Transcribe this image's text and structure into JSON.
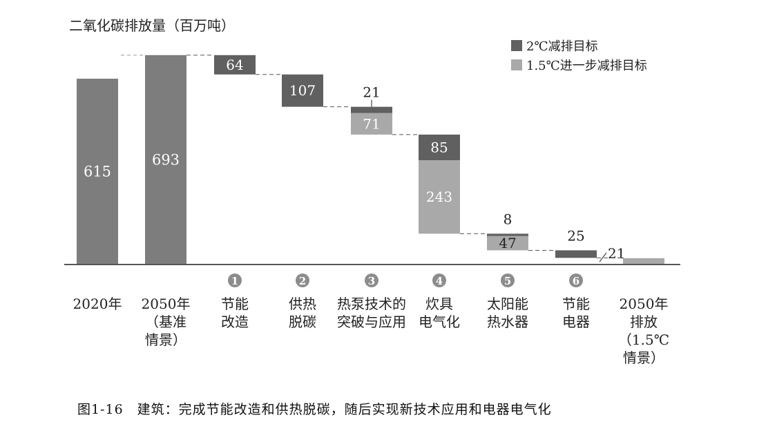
{
  "caption": "图1-16　建筑：完成节能改造和供热脱碳，随后实现新技术应用和电器电气化",
  "colors": {
    "base": "#7d7d7d",
    "dark": "#606060",
    "light": "#a9a9a9",
    "axis": "#555555",
    "text_on_bar": "#ffffff"
  },
  "chart_data": {
    "type": "bar",
    "subtype": "waterfall",
    "title": "二氧化碳排放量（百万吨）",
    "units": "百万吨",
    "legend_position": "top-right",
    "series": [
      {
        "name": "2℃减排目标",
        "color": "#606060"
      },
      {
        "name": "1.5℃进一步减排目标",
        "color": "#a9a9a9"
      }
    ],
    "categories": [
      {
        "label_lines": [
          "2020年"
        ]
      },
      {
        "label_lines": [
          "2050年",
          "（基准",
          "情景）"
        ]
      },
      {
        "marker": "1",
        "label_lines": [
          "节能",
          "改造"
        ]
      },
      {
        "marker": "2",
        "label_lines": [
          "供热",
          "脱碳"
        ]
      },
      {
        "marker": "3",
        "label_lines": [
          "热泵技术的",
          "突破与应用"
        ]
      },
      {
        "marker": "4",
        "label_lines": [
          "炊具",
          "电气化"
        ]
      },
      {
        "marker": "5",
        "label_lines": [
          "太阳能",
          "热水器"
        ]
      },
      {
        "marker": "6",
        "label_lines": [
          "节能",
          "电器"
        ]
      },
      {
        "label_lines": [
          "2050年",
          "排放",
          "（1.5℃",
          "情景）"
        ]
      }
    ],
    "totals": [
      {
        "category_index": 0,
        "value": 615,
        "label": "615"
      },
      {
        "category_index": 1,
        "value": 693,
        "label": "693"
      },
      {
        "category_index": 8,
        "value": 21,
        "label": "21"
      }
    ],
    "reductions": [
      {
        "category_index": 2,
        "two_degree": 64,
        "one_point_five": 0,
        "two_degree_label": "64",
        "one_point_five_label": ""
      },
      {
        "category_index": 3,
        "two_degree": 107,
        "one_point_five": 0,
        "two_degree_label": "107",
        "one_point_five_label": ""
      },
      {
        "category_index": 4,
        "two_degree": 21,
        "one_point_five": 71,
        "two_degree_label": "21",
        "one_point_five_label": "71"
      },
      {
        "category_index": 5,
        "two_degree": 85,
        "one_point_five": 243,
        "two_degree_label": "85",
        "one_point_five_label": "243"
      },
      {
        "category_index": 6,
        "two_degree": 8,
        "one_point_five": 47,
        "two_degree_label": "8",
        "one_point_five_label": "47"
      },
      {
        "category_index": 7,
        "two_degree": 25,
        "one_point_five": 0,
        "two_degree_label": "25",
        "one_point_five_label": ""
      }
    ]
  }
}
